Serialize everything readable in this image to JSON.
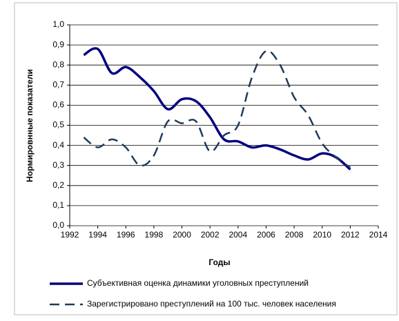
{
  "chart_data": {
    "type": "line",
    "x_label": "Годы",
    "y_label": "Нормировнные показатели",
    "x": [
      1993,
      1994,
      1995,
      1996,
      1997,
      1998,
      1999,
      2000,
      2001,
      2002,
      2003,
      2004,
      2005,
      2006,
      2007,
      2008,
      2009,
      2010,
      2011,
      2012
    ],
    "series": [
      {
        "name": "Субъективная оценка динамики уголовных преступлений",
        "color": "#00007f",
        "dash": "solid",
        "values": [
          0.85,
          0.88,
          0.76,
          0.79,
          0.74,
          0.67,
          0.58,
          0.63,
          0.62,
          0.54,
          0.43,
          0.42,
          0.39,
          0.4,
          0.38,
          0.35,
          0.33,
          0.36,
          0.34,
          0.28
        ]
      },
      {
        "name": "Зарегистрировано преступлений на 100 тыс. человек населения",
        "color": "#1f3a5a",
        "dash": "dashed",
        "values": [
          0.44,
          0.39,
          0.43,
          0.39,
          0.3,
          0.35,
          0.52,
          0.51,
          0.52,
          0.37,
          0.45,
          0.5,
          0.74,
          0.87,
          0.8,
          0.64,
          0.55,
          0.41,
          0.34,
          0.29
        ]
      }
    ],
    "xlim": [
      1992,
      2014
    ],
    "xticks": [
      1992,
      1994,
      1996,
      1998,
      2000,
      2002,
      2004,
      2006,
      2008,
      2010,
      2012,
      2014
    ],
    "ylim": [
      0,
      1
    ],
    "yticks": [
      {
        "value": 0,
        "label": "0,0"
      },
      {
        "value": 0.1,
        "label": "0,1"
      },
      {
        "value": 0.2,
        "label": "0,2"
      },
      {
        "value": 0.3,
        "label": "0,3"
      },
      {
        "value": 0.4,
        "label": "0,4"
      },
      {
        "value": 0.5,
        "label": "0,5"
      },
      {
        "value": 0.6,
        "label": "0,6"
      },
      {
        "value": 0.7,
        "label": "0,7"
      },
      {
        "value": 0.8,
        "label": "0,8"
      },
      {
        "value": 0.9,
        "label": "0,9"
      },
      {
        "value": 1,
        "label": "1,0"
      }
    ],
    "grid": true,
    "legend": "bottom"
  }
}
